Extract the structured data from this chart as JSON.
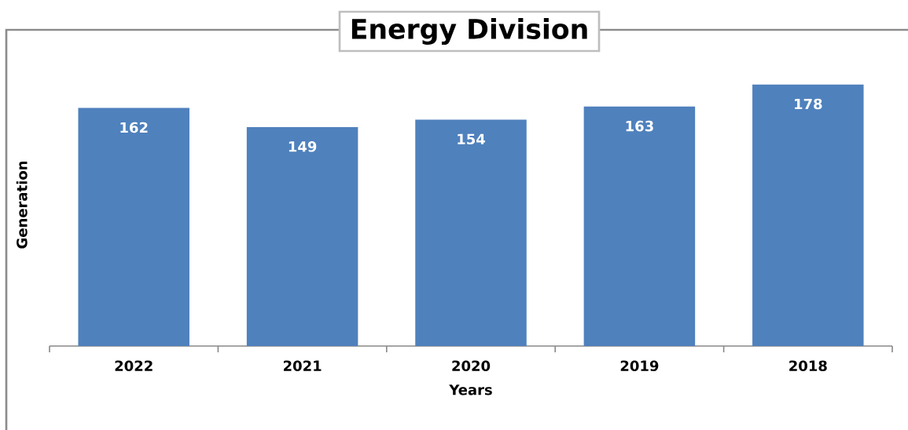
{
  "chart_data": {
    "type": "bar",
    "title": "Energy Division",
    "xlabel": "Years",
    "ylabel": "Generation",
    "categories": [
      "2022",
      "2021",
      "2020",
      "2019",
      "2018"
    ],
    "values": [
      162,
      149,
      154,
      163,
      178
    ],
    "color": "#4f81bd",
    "data_labels": true,
    "tick_labels": "x"
  }
}
